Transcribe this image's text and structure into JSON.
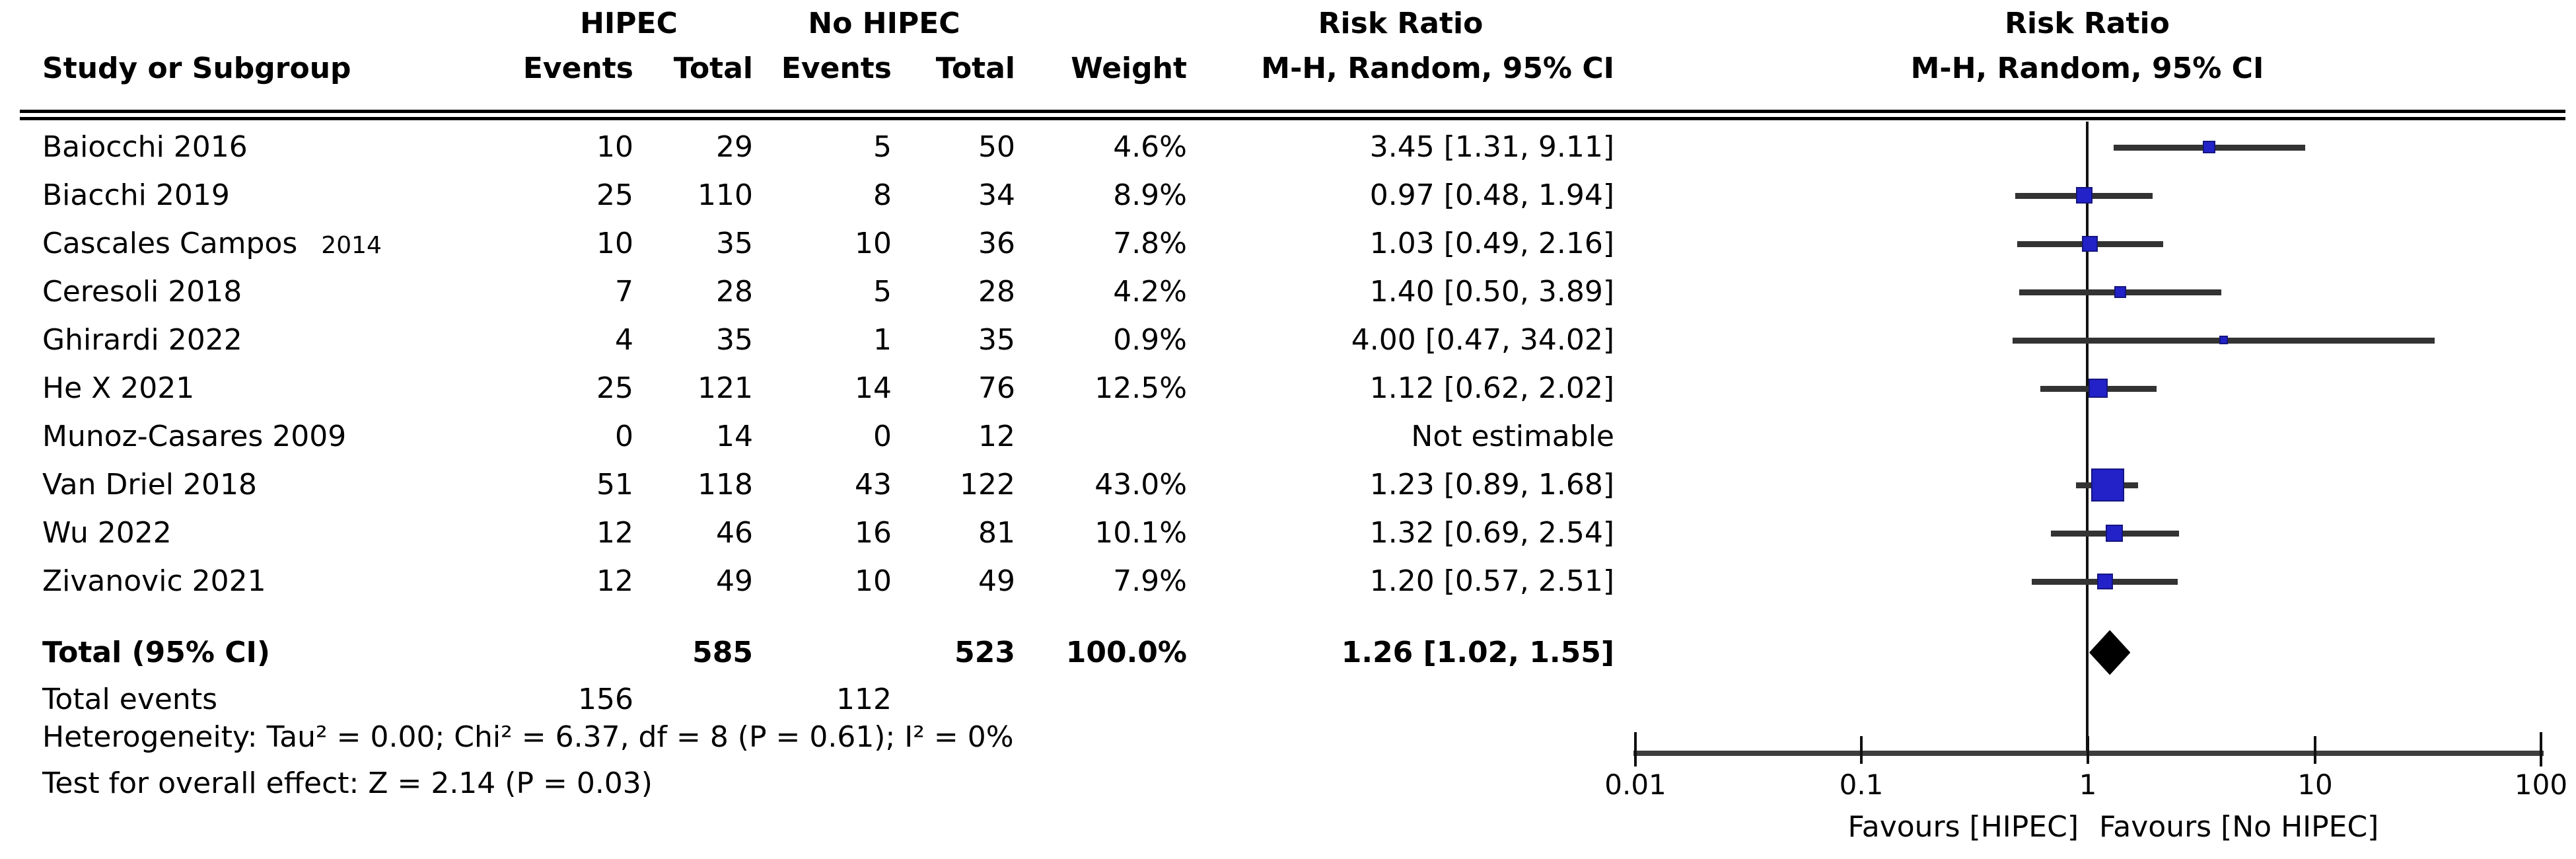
{
  "figure": {
    "columns": {
      "study": "Study or Subgroup",
      "group1": "HIPEC",
      "group2": "No HIPEC",
      "events": "Events",
      "total": "Total",
      "weight": "Weight",
      "risk_ratio": "Risk Ratio",
      "method": "M-H, Random, 95% CI"
    },
    "studies": [
      {
        "label": "Baiocchi 2016",
        "suffix": "",
        "e1": "10",
        "t1": "29",
        "e2": "5",
        "t2": "50",
        "weight": "4.6%",
        "rr_text": "3.45 [1.31, 9.11]",
        "rr": 3.45,
        "lo": 1.31,
        "hi": 9.11,
        "w": 4.6,
        "estimable": true
      },
      {
        "label": "Biacchi 2019",
        "suffix": "",
        "e1": "25",
        "t1": "110",
        "e2": "8",
        "t2": "34",
        "weight": "8.9%",
        "rr_text": "0.97 [0.48, 1.94]",
        "rr": 0.97,
        "lo": 0.48,
        "hi": 1.94,
        "w": 8.9,
        "estimable": true
      },
      {
        "label": "Cascales Campos",
        "suffix": "2014",
        "e1": "10",
        "t1": "35",
        "e2": "10",
        "t2": "36",
        "weight": "7.8%",
        "rr_text": "1.03 [0.49, 2.16]",
        "rr": 1.03,
        "lo": 0.49,
        "hi": 2.16,
        "w": 7.8,
        "estimable": true
      },
      {
        "label": "Ceresoli 2018",
        "suffix": "",
        "e1": "7",
        "t1": "28",
        "e2": "5",
        "t2": "28",
        "weight": "4.2%",
        "rr_text": "1.40 [0.50, 3.89]",
        "rr": 1.4,
        "lo": 0.5,
        "hi": 3.89,
        "w": 4.2,
        "estimable": true
      },
      {
        "label": "Ghirardi 2022",
        "suffix": "",
        "e1": "4",
        "t1": "35",
        "e2": "1",
        "t2": "35",
        "weight": "0.9%",
        "rr_text": "4.00 [0.47, 34.02]",
        "rr": 4.0,
        "lo": 0.47,
        "hi": 34.02,
        "w": 0.9,
        "estimable": true
      },
      {
        "label": "He X 2021",
        "suffix": "",
        "e1": "25",
        "t1": "121",
        "e2": "14",
        "t2": "76",
        "weight": "12.5%",
        "rr_text": "1.12 [0.62, 2.02]",
        "rr": 1.12,
        "lo": 0.62,
        "hi": 2.02,
        "w": 12.5,
        "estimable": true
      },
      {
        "label": "Munoz-Casares 2009",
        "suffix": "",
        "e1": "0",
        "t1": "14",
        "e2": "0",
        "t2": "12",
        "weight": "",
        "rr_text": "Not estimable",
        "rr": null,
        "lo": null,
        "hi": null,
        "w": null,
        "estimable": false
      },
      {
        "label": "Van Driel 2018",
        "suffix": "",
        "e1": "51",
        "t1": "118",
        "e2": "43",
        "t2": "122",
        "weight": "43.0%",
        "rr_text": "1.23 [0.89, 1.68]",
        "rr": 1.23,
        "lo": 0.89,
        "hi": 1.68,
        "w": 43.0,
        "estimable": true
      },
      {
        "label": "Wu 2022",
        "suffix": "",
        "e1": "12",
        "t1": "46",
        "e2": "16",
        "t2": "81",
        "weight": "10.1%",
        "rr_text": "1.32 [0.69, 2.54]",
        "rr": 1.32,
        "lo": 0.69,
        "hi": 2.54,
        "w": 10.1,
        "estimable": true
      },
      {
        "label": "Zivanovic 2021",
        "suffix": "",
        "e1": "12",
        "t1": "49",
        "e2": "10",
        "t2": "49",
        "weight": "7.9%",
        "rr_text": "1.20 [0.57, 2.51]",
        "rr": 1.2,
        "lo": 0.57,
        "hi": 2.51,
        "w": 7.9,
        "estimable": true
      }
    ],
    "total_row": {
      "label": "Total (95% CI)",
      "t1": "585",
      "t2": "523",
      "weight": "100.0%",
      "rr_text": "1.26 [1.02, 1.55]",
      "rr": 1.26,
      "lo": 1.02,
      "hi": 1.55
    },
    "total_events": {
      "label": "Total events",
      "e1": "156",
      "e2": "112"
    },
    "heterogeneity": "Heterogeneity: Tau² = 0.00; Chi² = 6.37, df = 8 (P = 0.61); I² = 0%",
    "overall_effect": "Test for overall effect: Z = 2.14 (P = 0.03)",
    "axis": {
      "ticks": [
        "0.01",
        "0.1",
        "1",
        "10",
        "100"
      ],
      "favours_left": "Favours [HIPEC]",
      "favours_right": "Favours [No HIPEC]"
    },
    "colors": {
      "marker": "#2222c8",
      "ci_line": "#333333",
      "diamond": "#000000",
      "axis": "#3d3d3d"
    }
  },
  "chart_data": {
    "type": "scatter",
    "subtype": "forest-plot-meta-analysis",
    "title": "Risk Ratio",
    "subtitle": "M-H, Random, 95% CI",
    "x_scale": "log10",
    "x_ticks": [
      0.01,
      0.1,
      1,
      10,
      100
    ],
    "xlim": [
      0.01,
      100
    ],
    "x_axis_labels": {
      "left": "Favours [HIPEC]",
      "right": "Favours [No HIPEC]"
    },
    "reference_line": 1,
    "studies": [
      {
        "name": "Baiocchi 2016",
        "hipec_events": 10,
        "hipec_total": 29,
        "no_hipec_events": 5,
        "no_hipec_total": 50,
        "weight_pct": 4.6,
        "rr": 3.45,
        "ci_low": 1.31,
        "ci_high": 9.11
      },
      {
        "name": "Biacchi 2019",
        "hipec_events": 25,
        "hipec_total": 110,
        "no_hipec_events": 8,
        "no_hipec_total": 34,
        "weight_pct": 8.9,
        "rr": 0.97,
        "ci_low": 0.48,
        "ci_high": 1.94
      },
      {
        "name": "Cascales Campos 2014",
        "hipec_events": 10,
        "hipec_total": 35,
        "no_hipec_events": 10,
        "no_hipec_total": 36,
        "weight_pct": 7.8,
        "rr": 1.03,
        "ci_low": 0.49,
        "ci_high": 2.16
      },
      {
        "name": "Ceresoli 2018",
        "hipec_events": 7,
        "hipec_total": 28,
        "no_hipec_events": 5,
        "no_hipec_total": 28,
        "weight_pct": 4.2,
        "rr": 1.4,
        "ci_low": 0.5,
        "ci_high": 3.89
      },
      {
        "name": "Ghirardi 2022",
        "hipec_events": 4,
        "hipec_total": 35,
        "no_hipec_events": 1,
        "no_hipec_total": 35,
        "weight_pct": 0.9,
        "rr": 4.0,
        "ci_low": 0.47,
        "ci_high": 34.02
      },
      {
        "name": "He X 2021",
        "hipec_events": 25,
        "hipec_total": 121,
        "no_hipec_events": 14,
        "no_hipec_total": 76,
        "weight_pct": 12.5,
        "rr": 1.12,
        "ci_low": 0.62,
        "ci_high": 2.02
      },
      {
        "name": "Munoz-Casares 2009",
        "hipec_events": 0,
        "hipec_total": 14,
        "no_hipec_events": 0,
        "no_hipec_total": 12,
        "weight_pct": null,
        "rr": null,
        "ci_low": null,
        "ci_high": null,
        "note": "Not estimable"
      },
      {
        "name": "Van Driel 2018",
        "hipec_events": 51,
        "hipec_total": 118,
        "no_hipec_events": 43,
        "no_hipec_total": 122,
        "weight_pct": 43.0,
        "rr": 1.23,
        "ci_low": 0.89,
        "ci_high": 1.68
      },
      {
        "name": "Wu 2022",
        "hipec_events": 12,
        "hipec_total": 46,
        "no_hipec_events": 16,
        "no_hipec_total": 81,
        "weight_pct": 10.1,
        "rr": 1.32,
        "ci_low": 0.69,
        "ci_high": 2.54
      },
      {
        "name": "Zivanovic 2021",
        "hipec_events": 12,
        "hipec_total": 49,
        "no_hipec_events": 10,
        "no_hipec_total": 49,
        "weight_pct": 7.9,
        "rr": 1.2,
        "ci_low": 0.57,
        "ci_high": 2.51
      }
    ],
    "total": {
      "label": "Total (95% CI)",
      "hipec_total": 585,
      "no_hipec_total": 523,
      "weight_pct": 100.0,
      "rr": 1.26,
      "ci_low": 1.02,
      "ci_high": 1.55
    },
    "total_events": {
      "hipec": 156,
      "no_hipec": 112
    },
    "heterogeneity": {
      "tau2": 0.0,
      "chi2": 6.37,
      "df": 8,
      "p": 0.61,
      "i2_pct": 0
    },
    "overall_effect": {
      "z": 2.14,
      "p": 0.03
    }
  }
}
